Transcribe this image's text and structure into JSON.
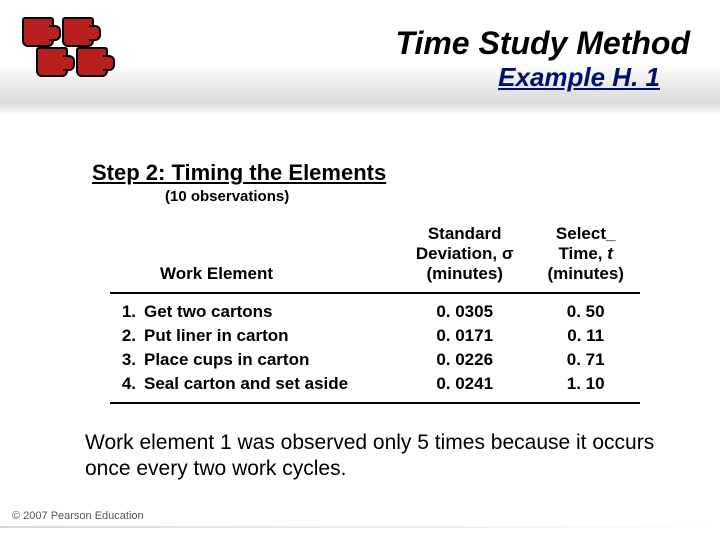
{
  "header": {
    "title": "Time Study Method",
    "subtitle": "Example H. 1"
  },
  "step": {
    "title": "Step 2: Timing the Elements",
    "sub": "(10 observations)"
  },
  "table": {
    "headers": {
      "work_element": "Work Element",
      "std_dev_l1": "Standard",
      "std_dev_l2": "Deviation, σ",
      "std_dev_l3": "(minutes)",
      "select_l1": "Select",
      "select_l2a": "Time, ",
      "select_l2b": "t",
      "select_l3": "(minutes)"
    },
    "rows": [
      {
        "num": "1.",
        "element": "Get two cartons",
        "sd": "0. 0305",
        "time": "0. 50"
      },
      {
        "num": "2.",
        "element": "Put liner in carton",
        "sd": "0. 0171",
        "time": "0. 11"
      },
      {
        "num": "3.",
        "element": "Place cups in carton",
        "sd": "0. 0226",
        "time": "0. 71"
      },
      {
        "num": "4.",
        "element": "Seal carton and set aside",
        "sd": "0. 0241",
        "time": "1. 10"
      }
    ]
  },
  "note": "Work element 1 was observed only 5 times because it occurs once every two work cycles.",
  "copyright": "© 2007 Pearson Education"
}
